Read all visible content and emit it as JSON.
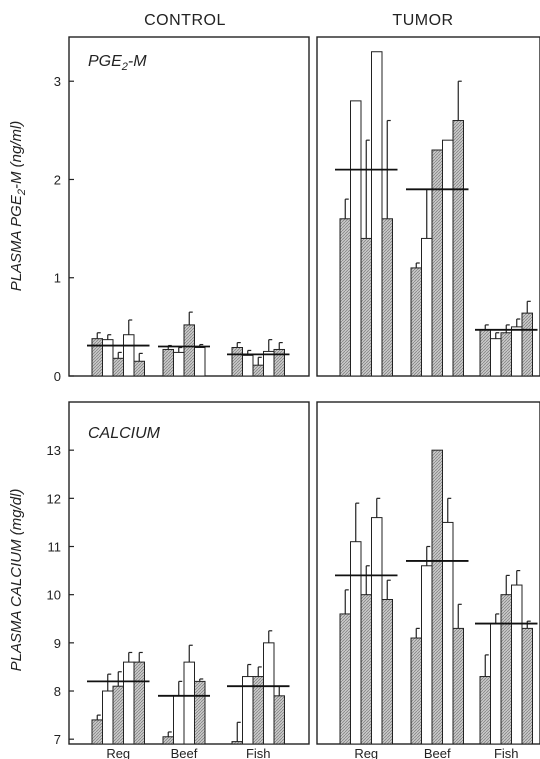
{
  "chart_data": [
    {
      "type": "bar",
      "panel": "top-left",
      "column_title": "CONTROL",
      "title_prefix": "PGE",
      "title_sub": "2",
      "title_suffix": "-M",
      "ylabel_prefix": "PLASMA PGE",
      "ylabel_sub": "2",
      "ylabel_suffix": "-M (ng/ml)",
      "ylim": [
        0,
        3.45
      ],
      "yticks": [
        "0",
        "1",
        "2",
        "3"
      ],
      "ytick_values": [
        0,
        1,
        2,
        3
      ],
      "categories": [
        "Reg",
        "Beef",
        "Fish"
      ],
      "groups": [
        {
          "category": "Reg",
          "mean": 0.31,
          "bars": [
            {
              "value": 0.38,
              "err": 0.06,
              "fill": "hatched"
            },
            {
              "value": 0.37,
              "err": 0.05,
              "fill": "white"
            },
            {
              "value": 0.18,
              "err": 0.06,
              "fill": "hatched"
            },
            {
              "value": 0.42,
              "err": 0.15,
              "fill": "white"
            },
            {
              "value": 0.15,
              "err": 0.08,
              "fill": "hatched"
            }
          ]
        },
        {
          "category": "Beef",
          "mean": 0.3,
          "bars": [
            {
              "value": 0.27,
              "err": 0.04,
              "fill": "hatched"
            },
            {
              "value": 0.24,
              "err": 0.05,
              "fill": "white"
            },
            {
              "value": 0.52,
              "err": 0.13,
              "fill": "hatched"
            },
            {
              "value": 0.29,
              "err": 0.03,
              "fill": "white"
            }
          ]
        },
        {
          "category": "Fish",
          "mean": 0.22,
          "bars": [
            {
              "value": 0.29,
              "err": 0.05,
              "fill": "hatched"
            },
            {
              "value": 0.21,
              "err": 0.05,
              "fill": "white"
            },
            {
              "value": 0.11,
              "err": 0.08,
              "fill": "hatched"
            },
            {
              "value": 0.25,
              "err": 0.12,
              "fill": "white"
            },
            {
              "value": 0.27,
              "err": 0.07,
              "fill": "hatched"
            }
          ]
        }
      ]
    },
    {
      "type": "bar",
      "panel": "top-right",
      "column_title": "TUMOR",
      "ylim": [
        0,
        3.45
      ],
      "categories": [
        "Reg",
        "Beef",
        "Fish"
      ],
      "groups": [
        {
          "category": "Reg",
          "mean": 2.1,
          "bars": [
            {
              "value": 1.6,
              "err": 0.2,
              "fill": "hatched"
            },
            {
              "value": 2.8,
              "err": 0.0,
              "fill": "white"
            },
            {
              "value": 1.4,
              "err": 1.0,
              "fill": "hatched"
            },
            {
              "value": 3.3,
              "err": 0.0,
              "fill": "white"
            },
            {
              "value": 1.6,
              "err": 1.0,
              "fill": "hatched"
            }
          ]
        },
        {
          "category": "Beef",
          "mean": 1.9,
          "bars": [
            {
              "value": 1.1,
              "err": 0.05,
              "fill": "hatched"
            },
            {
              "value": 1.4,
              "err": 0.5,
              "fill": "white"
            },
            {
              "value": 2.3,
              "err": 0.0,
              "fill": "hatched"
            },
            {
              "value": 2.4,
              "err": 0.0,
              "fill": "white"
            },
            {
              "value": 2.6,
              "err": 0.4,
              "fill": "hatched"
            }
          ]
        },
        {
          "category": "Fish",
          "mean": 0.47,
          "bars": [
            {
              "value": 0.47,
              "err": 0.05,
              "fill": "hatched"
            },
            {
              "value": 0.38,
              "err": 0.06,
              "fill": "white"
            },
            {
              "value": 0.44,
              "err": 0.08,
              "fill": "hatched"
            },
            {
              "value": 0.5,
              "err": 0.08,
              "fill": "white"
            },
            {
              "value": 0.64,
              "err": 0.12,
              "fill": "hatched"
            }
          ]
        }
      ]
    },
    {
      "type": "bar",
      "panel": "bottom-left",
      "title": "CALCIUM",
      "ylabel": "PLASMA CALCIUM (mg/dl)",
      "ylim": [
        6.9,
        14.0
      ],
      "yticks": [
        "7",
        "8",
        "9",
        "10",
        "11",
        "12",
        "13"
      ],
      "ytick_values": [
        7,
        8,
        9,
        10,
        11,
        12,
        13
      ],
      "categories": [
        "Reg",
        "Beef",
        "Fish"
      ],
      "groups": [
        {
          "category": "Reg",
          "mean": 8.2,
          "bars": [
            {
              "value": 7.4,
              "err": 0.1,
              "fill": "hatched"
            },
            {
              "value": 8.0,
              "err": 0.35,
              "fill": "white"
            },
            {
              "value": 8.1,
              "err": 0.3,
              "fill": "hatched"
            },
            {
              "value": 8.6,
              "err": 0.2,
              "fill": "white"
            },
            {
              "value": 8.6,
              "err": 0.2,
              "fill": "hatched"
            }
          ]
        },
        {
          "category": "Beef",
          "mean": 7.9,
          "bars": [
            {
              "value": 7.05,
              "err": 0.1,
              "fill": "hatched"
            },
            {
              "value": 7.9,
              "err": 0.3,
              "fill": "white"
            },
            {
              "value": 8.6,
              "err": 0.35,
              "fill": "white"
            },
            {
              "value": 8.2,
              "err": 0.05,
              "fill": "hatched"
            }
          ]
        },
        {
          "category": "Fish",
          "mean": 8.1,
          "bars": [
            {
              "value": 6.95,
              "err": 0.4,
              "fill": "hatched"
            },
            {
              "value": 8.3,
              "err": 0.25,
              "fill": "white"
            },
            {
              "value": 8.3,
              "err": 0.2,
              "fill": "hatched"
            },
            {
              "value": 9.0,
              "err": 0.25,
              "fill": "white"
            },
            {
              "value": 7.9,
              "err": 0.2,
              "fill": "hatched"
            }
          ]
        }
      ]
    },
    {
      "type": "bar",
      "panel": "bottom-right",
      "ylim": [
        6.9,
        14.0
      ],
      "categories": [
        "Reg",
        "Beef",
        "Fish"
      ],
      "groups": [
        {
          "category": "Reg",
          "mean": 10.4,
          "bars": [
            {
              "value": 9.6,
              "err": 0.5,
              "fill": "hatched"
            },
            {
              "value": 11.1,
              "err": 0.8,
              "fill": "white"
            },
            {
              "value": 10.0,
              "err": 0.6,
              "fill": "hatched"
            },
            {
              "value": 11.6,
              "err": 0.4,
              "fill": "white"
            },
            {
              "value": 9.9,
              "err": 0.4,
              "fill": "hatched"
            }
          ]
        },
        {
          "category": "Beef",
          "mean": 10.7,
          "bars": [
            {
              "value": 9.1,
              "err": 0.2,
              "fill": "hatched"
            },
            {
              "value": 10.6,
              "err": 0.4,
              "fill": "white"
            },
            {
              "value": 13.0,
              "err": 0.0,
              "fill": "hatched"
            },
            {
              "value": 11.5,
              "err": 0.5,
              "fill": "white"
            },
            {
              "value": 9.3,
              "err": 0.5,
              "fill": "hatched"
            }
          ]
        },
        {
          "category": "Fish",
          "mean": 9.4,
          "bars": [
            {
              "value": 8.3,
              "err": 0.45,
              "fill": "hatched"
            },
            {
              "value": 9.4,
              "err": 0.2,
              "fill": "white"
            },
            {
              "value": 10.0,
              "err": 0.4,
              "fill": "hatched"
            },
            {
              "value": 10.2,
              "err": 0.3,
              "fill": "white"
            },
            {
              "value": 9.3,
              "err": 0.15,
              "fill": "hatched"
            }
          ]
        }
      ]
    }
  ]
}
